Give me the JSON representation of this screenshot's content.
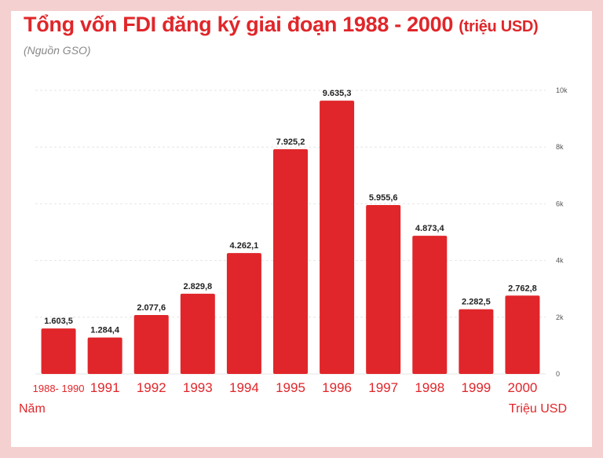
{
  "header": {
    "title": "Tổng vốn FDI đăng ký giai đoạn 1988 - 2000",
    "title_unit": "(triệu USD)",
    "source": "(Nguồn GSO)"
  },
  "colors": {
    "bar": "#e0262a",
    "accent": "#e0262a",
    "frame": "#f5d0d0"
  },
  "chart_data": {
    "type": "bar",
    "title": "Tổng vốn FDI đăng ký giai đoạn 1988 - 2000 (triệu USD)",
    "xlabel": "Năm",
    "ylabel": "Triệu USD",
    "categories": [
      "1988- 1990",
      "1991",
      "1992",
      "1993",
      "1994",
      "1995",
      "1996",
      "1997",
      "1998",
      "1999",
      "2000"
    ],
    "values": [
      1603.5,
      1284.4,
      2077.6,
      2829.8,
      4262.1,
      7925.2,
      9635.3,
      5955.6,
      4873.4,
      2282.5,
      2762.8
    ],
    "value_labels": [
      "1.603,5",
      "1.284,4",
      "2.077,6",
      "2.829,8",
      "4.262,1",
      "7.925,2",
      "9.635,3",
      "5.955,6",
      "4.873,4",
      "2.282,5",
      "2.762,8"
    ],
    "y_ticks": [
      0,
      2000,
      4000,
      6000,
      8000,
      10000
    ],
    "y_tick_labels": [
      "0",
      "2k",
      "4k",
      "6k",
      "8k",
      "10k"
    ],
    "ylim": [
      0,
      10000
    ],
    "grid": true
  }
}
